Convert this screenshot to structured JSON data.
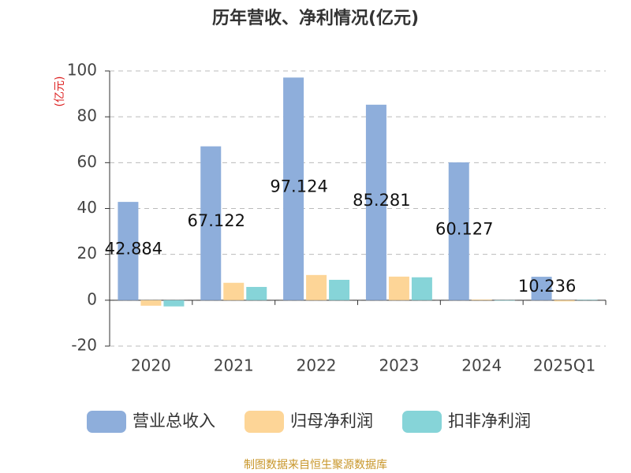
{
  "chart_data": {
    "type": "bar",
    "title": "历年营收、净利情况(亿元)",
    "y_label": "(亿元)",
    "categories": [
      "2020",
      "2021",
      "2022",
      "2023",
      "2024",
      "2025Q1"
    ],
    "series": [
      {
        "name": "营业总收入",
        "color": "#8eaedb",
        "values": [
          42.884,
          67.122,
          97.124,
          85.281,
          60.127,
          10.236
        ]
      },
      {
        "name": "归母净利润",
        "color": "#fdd597",
        "values": [
          -2.4,
          7.6,
          11.0,
          10.3,
          0.3,
          -0.5
        ]
      },
      {
        "name": "扣非净利润",
        "color": "#86d4d8",
        "values": [
          -2.7,
          5.8,
          8.9,
          10.0,
          -0.2,
          0.2
        ]
      }
    ],
    "ylim": [
      -20,
      100
    ],
    "yticks": [
      -20,
      0,
      20,
      40,
      60,
      80,
      100
    ],
    "grid": true,
    "source": "制图数据来自恒生聚源数据库"
  }
}
